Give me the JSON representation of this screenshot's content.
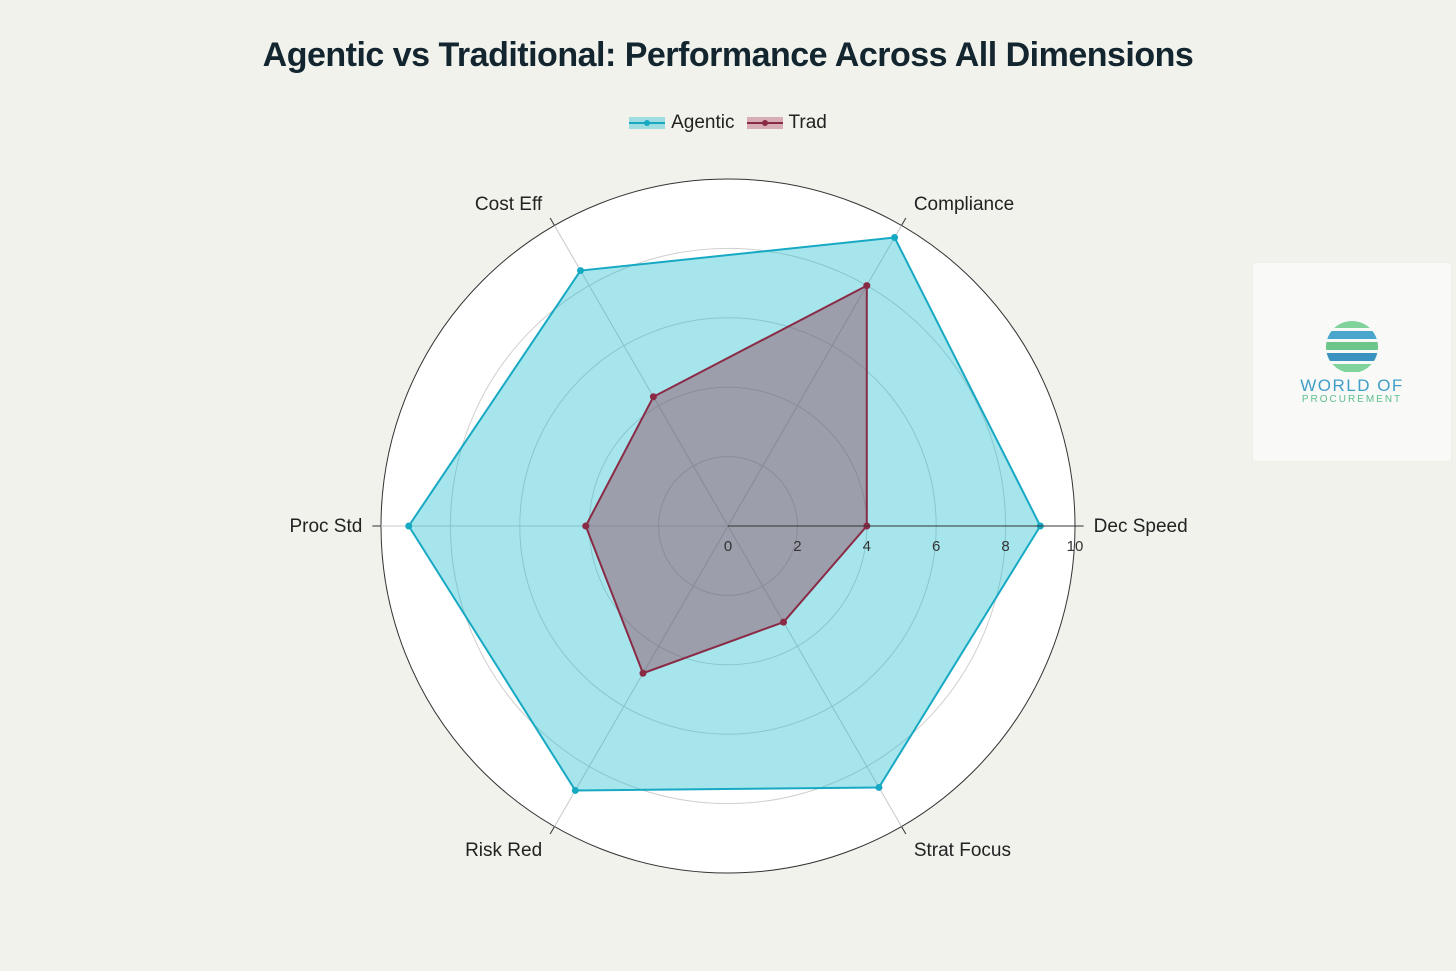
{
  "chart_data": {
    "type": "radar",
    "title": "Agentic vs Traditional: Performance Across All Dimensions",
    "axes": [
      "Dec Speed",
      "Compliance",
      "Cost Eff",
      "Proc Std",
      "Risk Red",
      "Strat Focus"
    ],
    "radial_ticks": [
      "0",
      "2",
      "4",
      "6",
      "8",
      "10"
    ],
    "rlim": [
      0,
      10
    ],
    "legend_position": "top",
    "series": [
      {
        "name": "Agentic",
        "values": [
          9,
          9.6,
          8.5,
          9.2,
          8.8,
          8.7
        ],
        "color": "#17a9c3",
        "fill": "rgba(23,187,208,0.38)"
      },
      {
        "name": "Trad",
        "values": [
          4,
          8,
          4.3,
          4.1,
          4.9,
          3.2
        ],
        "color": "#8a2b46",
        "fill": "rgba(140,60,80,0.42)"
      }
    ]
  },
  "logo": {
    "line1": "WORLD OF",
    "line2": "PROCUREMENT"
  }
}
